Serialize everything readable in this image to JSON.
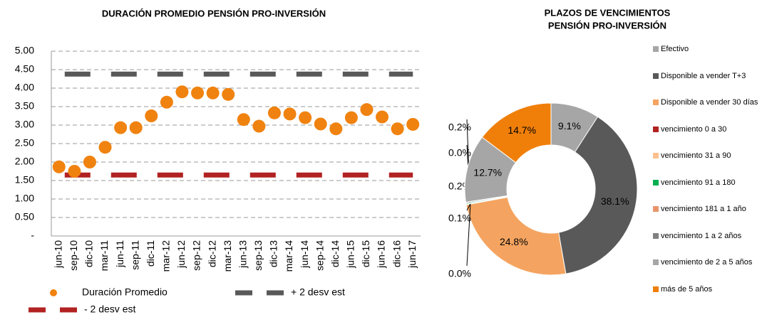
{
  "chart_data": [
    {
      "type": "line",
      "title": "DURACIÓN PROMEDIO PENSIÓN PRO-INVERSIÓN",
      "categories": [
        "jun-10",
        "sep-10",
        "dic-10",
        "mar-11",
        "jun-11",
        "sep-11",
        "dic-11",
        "mar-12",
        "jun-12",
        "sep-12",
        "dic-12",
        "mar-13",
        "jun-13",
        "sep-13",
        "dic-13",
        "mar-14",
        "jun-14",
        "sep-14",
        "dic-14",
        "jun-15",
        "dic-15",
        "jun-16",
        "dic-16",
        "jun-17"
      ],
      "series": [
        {
          "name": "Duración Promedio",
          "color": "#f0820f",
          "style": "dots",
          "values": [
            1.87,
            1.75,
            2.0,
            2.4,
            2.93,
            2.93,
            3.25,
            3.62,
            3.9,
            3.87,
            3.87,
            3.83,
            3.15,
            2.97,
            3.33,
            3.3,
            3.2,
            3.03,
            2.9,
            3.2,
            3.42,
            3.22,
            2.9,
            3.02
          ]
        },
        {
          "name": "+ 2 desv est",
          "color": "#595959",
          "style": "dashes",
          "values": [
            4.38,
            4.38,
            4.38,
            4.38,
            4.38,
            4.38,
            4.38,
            4.38,
            4.38,
            4.38,
            4.38,
            4.38,
            4.38,
            4.38,
            4.38,
            4.38,
            4.38,
            4.38,
            4.38,
            4.38,
            4.38,
            4.38,
            4.38,
            4.38
          ]
        },
        {
          "name": "- 2 desv est",
          "color": "#b22222",
          "style": "dashes",
          "values": [
            1.65,
            1.65,
            1.65,
            1.65,
            1.65,
            1.65,
            1.65,
            1.65,
            1.65,
            1.65,
            1.65,
            1.65,
            1.65,
            1.65,
            1.65,
            1.65,
            1.65,
            1.65,
            1.65,
            1.65,
            1.65,
            1.65,
            1.65,
            1.65
          ]
        }
      ],
      "ylim": [
        0,
        5
      ],
      "yticks": [
        {
          "value": 0,
          "label": "-"
        },
        {
          "value": 0.5,
          "label": "0.50"
        },
        {
          "value": 1,
          "label": "1.00"
        },
        {
          "value": 1.5,
          "label": "1.50"
        },
        {
          "value": 2,
          "label": "2.00"
        },
        {
          "value": 2.5,
          "label": "2.50"
        },
        {
          "value": 3,
          "label": "3.00"
        },
        {
          "value": 3.5,
          "label": "3.50"
        },
        {
          "value": 4,
          "label": "4.00"
        },
        {
          "value": 4.5,
          "label": "4.50"
        },
        {
          "value": 5,
          "label": "5.00"
        }
      ],
      "grid": true
    },
    {
      "type": "pie",
      "donut": true,
      "title": [
        "PLAZOS DE VENCIMIENTOS",
        "PENSIÓN PRO-INVERSIÓN"
      ],
      "categories": [
        "Efectivo",
        "Disponible a vender T+3",
        "Disponible a vender 30 días",
        "vencimiento 0 a 30",
        "vencimiento 31 a 90",
        "vencimiento 91 a 180",
        "vencimiento 181 a 1 año",
        "vencimiento 1 a 2 años",
        "vencimiento de 2 a 5 años",
        "más de 5 años"
      ],
      "values": [
        9.1,
        38.1,
        24.8,
        0.0,
        0.1,
        0.2,
        0.0,
        0.2,
        12.7,
        14.7
      ],
      "value_labels": [
        "9.1%",
        "38.1%",
        "24.8%",
        "0.0%",
        "0.1%",
        "0.2%",
        "0.0%",
        "0.2%",
        "12.7%",
        "14.7%"
      ],
      "colors": [
        "#a6a6a6",
        "#595959",
        "#f4a460",
        "#b22222",
        "#fac090",
        "#00b050",
        "#e8956b",
        "#808080",
        "#a6a6a6",
        "#f07f09"
      ]
    }
  ]
}
